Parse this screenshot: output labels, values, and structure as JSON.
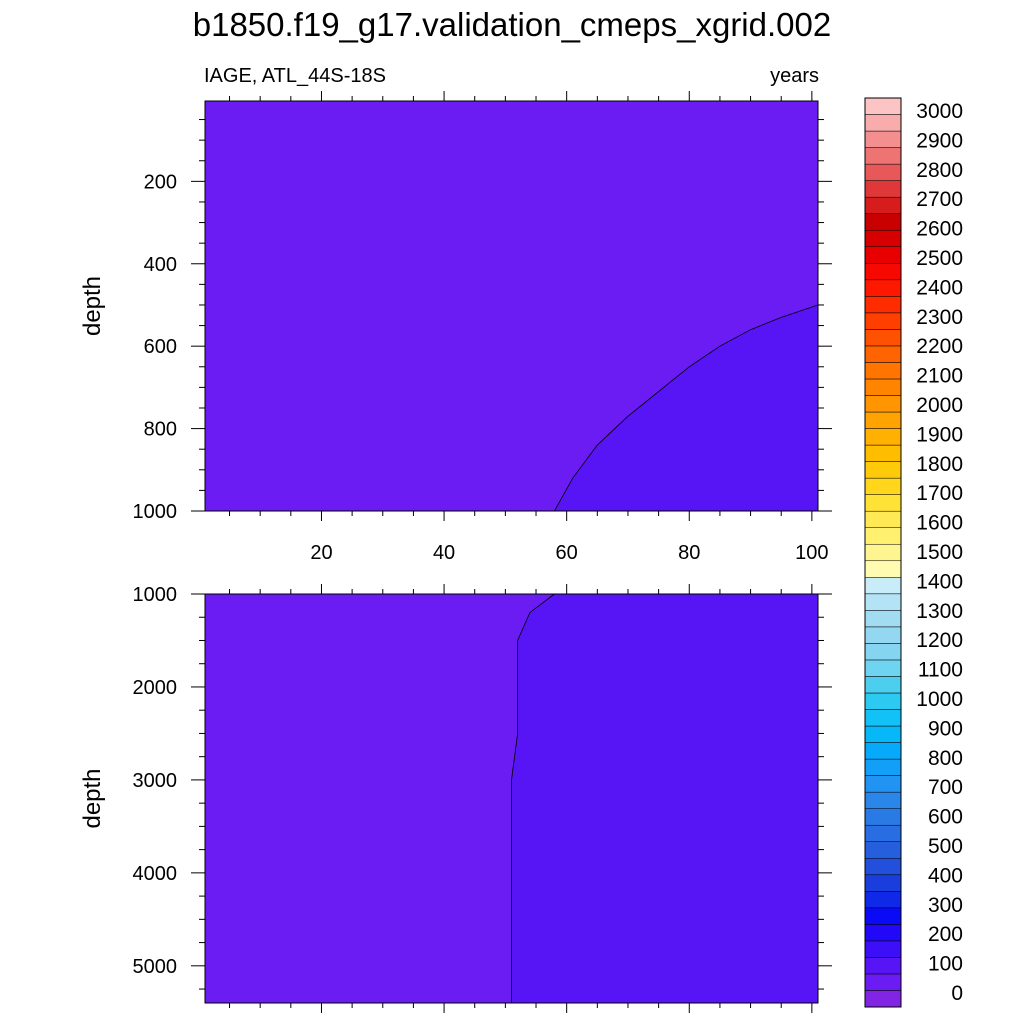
{
  "title": "b1850.f19_g17.validation_cmeps_xgrid.002",
  "left_subtitle": "IAGE, ATL_44S-18S",
  "right_subtitle": "years",
  "chart_data": [
    {
      "type": "heatmap",
      "panel": "upper",
      "variable": "IAGE",
      "region": "ATL_44S-18S",
      "units": "years",
      "xlabel": "",
      "ylabel": "depth",
      "xlim": [
        1,
        101
      ],
      "ylim": [
        1000,
        5
      ],
      "x_ticks": [
        20,
        40,
        60,
        80,
        100
      ],
      "y_ticks": [
        200,
        400,
        600,
        800,
        1000
      ],
      "contour_levels": [
        0,
        100
      ],
      "regions": [
        {
          "range": "0-100",
          "color": "#6a1cf2",
          "location": "most of panel"
        },
        {
          "range": "100-200",
          "color": "#5715f5",
          "location": "lower right corner"
        }
      ],
      "contour_100": [
        [
          58,
          1000
        ],
        [
          61,
          920
        ],
        [
          65,
          840
        ],
        [
          70,
          770
        ],
        [
          75,
          710
        ],
        [
          80,
          650
        ],
        [
          85,
          600
        ],
        [
          90,
          560
        ],
        [
          95,
          530
        ],
        [
          101,
          500
        ]
      ]
    },
    {
      "type": "heatmap",
      "panel": "lower",
      "variable": "IAGE",
      "region": "ATL_44S-18S",
      "units": "years",
      "xlabel": "",
      "ylabel": "depth",
      "xlim": [
        1,
        101
      ],
      "ylim": [
        5400,
        1000
      ],
      "x_ticks": [
        20,
        40,
        60,
        80,
        100
      ],
      "y_ticks": [
        1000,
        2000,
        3000,
        4000,
        5000
      ],
      "contour_levels": [
        0,
        100
      ],
      "regions": [
        {
          "range": "0-100",
          "color": "#6a1cf2",
          "location": "left half"
        },
        {
          "range": "100-200",
          "color": "#5715f5",
          "location": "right half"
        }
      ],
      "contour_100": [
        [
          58,
          1000
        ],
        [
          54,
          1200
        ],
        [
          52,
          1500
        ],
        [
          52,
          2000
        ],
        [
          52,
          2500
        ],
        [
          51,
          3000
        ],
        [
          51,
          4000
        ],
        [
          51,
          5000
        ],
        [
          51,
          5400
        ]
      ]
    }
  ],
  "colorbar": {
    "labels": [
      "0",
      "100",
      "200",
      "300",
      "400",
      "500",
      "600",
      "700",
      "800",
      "900",
      "1000",
      "1100",
      "1200",
      "1300",
      "1400",
      "1500",
      "1600",
      "1700",
      "1800",
      "1900",
      "2000",
      "2100",
      "2200",
      "2300",
      "2400",
      "2500",
      "2600",
      "2700",
      "2800",
      "2900",
      "3000"
    ],
    "colors": [
      "#8224e3",
      "#6a1cf2",
      "#5715f5",
      "#3d0ef8",
      "#2208f9",
      "#0b0af7",
      "#1028e8",
      "#1a3dde",
      "#2250dc",
      "#255fde",
      "#286de2",
      "#2a7ae6",
      "#2b86ea",
      "#2193f2",
      "#129ff7",
      "#07aafa",
      "#07b8f9",
      "#12c1f5",
      "#2ccaf0",
      "#4ccfee",
      "#6ed4ef",
      "#86d5f0",
      "#94d7f1",
      "#a2dcf3",
      "#b4e3f5",
      "#c8ecf8",
      "#fffbb0",
      "#fff590",
      "#fff070",
      "#ffea55",
      "#ffe236",
      "#ffd61c",
      "#ffca0a",
      "#ffbd00",
      "#ffb000",
      "#ffa300",
      "#ff9500",
      "#ff8500",
      "#ff7500",
      "#ff6400",
      "#ff5200",
      "#ff3f00",
      "#ff2c00",
      "#ff1800",
      "#f70800",
      "#e80000",
      "#d60000",
      "#c80000",
      "#d61c1c",
      "#e03838",
      "#e85858",
      "#ee7474",
      "#f48f8f",
      "#f9acac",
      "#fcc4c4"
    ]
  }
}
